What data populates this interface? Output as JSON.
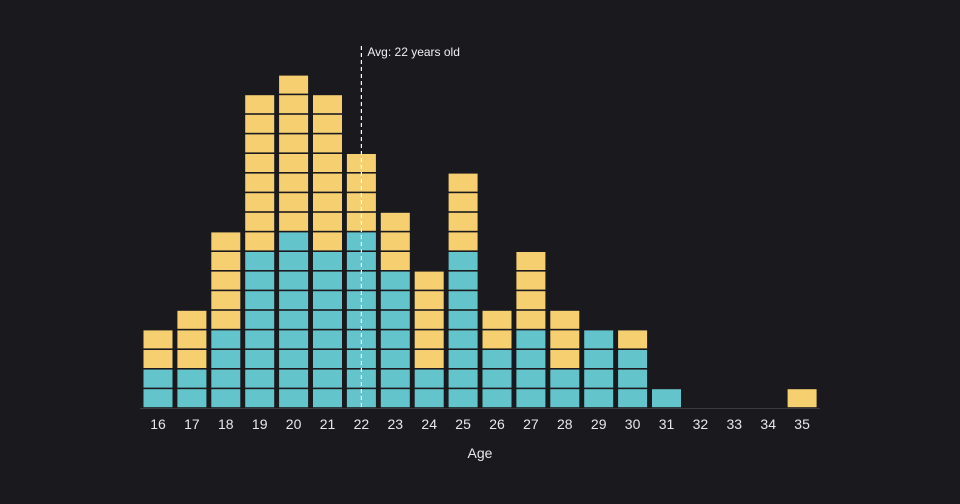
{
  "chart_data": {
    "type": "bar",
    "stacked": true,
    "unit_blocks": true,
    "xlabel": "Age",
    "ylabel": "",
    "title": "",
    "categories": [
      "16",
      "17",
      "18",
      "19",
      "20",
      "21",
      "22",
      "23",
      "24",
      "25",
      "26",
      "27",
      "28",
      "29",
      "30",
      "31",
      "32",
      "33",
      "34",
      "35"
    ],
    "series": [
      {
        "color": "#63c5cb",
        "values": [
          2,
          2,
          4,
          8,
          9,
          8,
          9,
          7,
          2,
          8,
          3,
          4,
          2,
          4,
          3,
          1,
          0,
          0,
          0,
          0
        ]
      },
      {
        "color": "#f5cf70",
        "values": [
          2,
          3,
          5,
          8,
          8,
          8,
          4,
          3,
          5,
          4,
          2,
          4,
          3,
          0,
          1,
          0,
          0,
          0,
          0,
          1
        ]
      }
    ],
    "ylim": [
      0,
      17
    ],
    "grid": false,
    "annotation": {
      "label": "Avg: 22 years old",
      "x": 22
    },
    "background": "#1a191e"
  }
}
